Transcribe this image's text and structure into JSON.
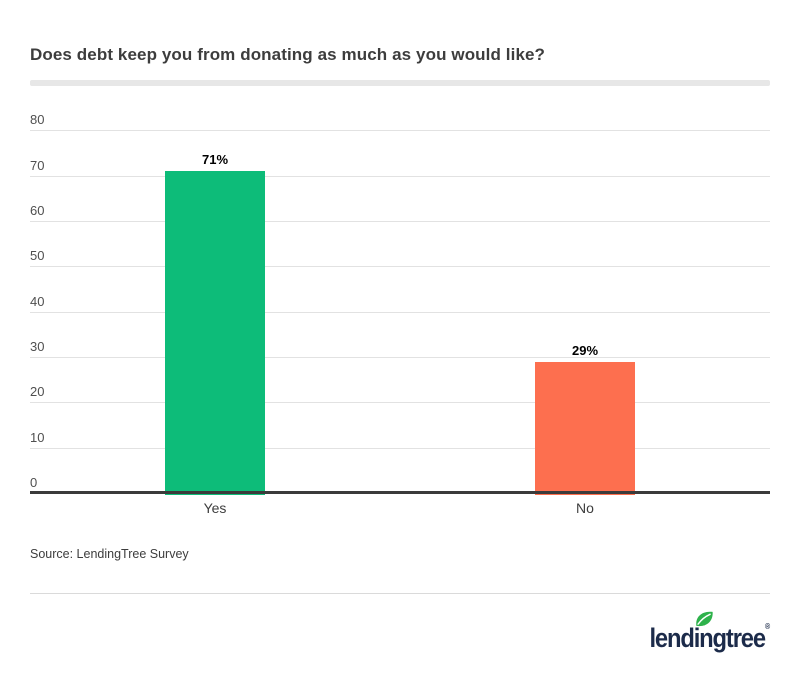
{
  "page": {
    "title": "Does debt keep you from donating as much as you would like?",
    "source": "Source: LendingTree Survey"
  },
  "logo": {
    "text": "lendingtree",
    "registered": "®",
    "navy": "#1c2b4a",
    "leaf_green": "#2eb24b"
  },
  "chart_data": {
    "type": "bar",
    "title": "Does debt keep you from donating as much as you would like?",
    "categories": [
      "Yes",
      "No"
    ],
    "values": [
      71,
      29
    ],
    "value_labels": [
      "71%",
      "29%"
    ],
    "bar_colors": [
      "#0dbc79",
      "#fd6f4f"
    ],
    "xlabel": "",
    "ylabel": "",
    "ylim": [
      0,
      80
    ],
    "yticks": [
      0,
      10,
      20,
      30,
      40,
      50,
      60,
      70,
      80
    ],
    "grid": true,
    "legend": false
  }
}
